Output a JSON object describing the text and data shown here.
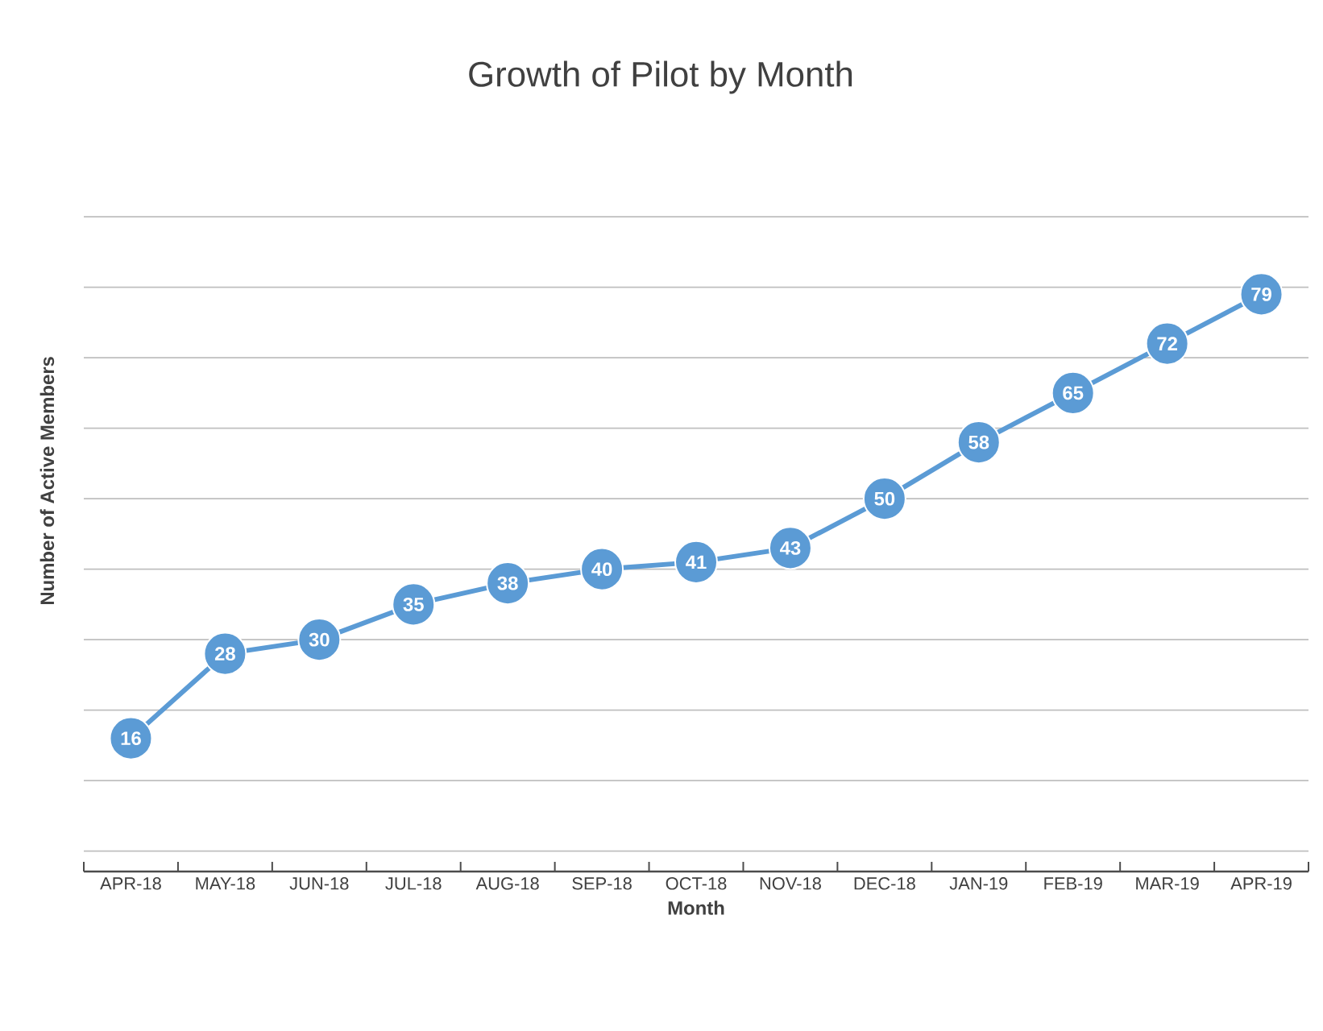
{
  "chart_data": {
    "type": "line",
    "title": "Growth of Pilot by Month",
    "xlabel": "Month",
    "ylabel": "Number of Active Members",
    "categories": [
      "APR-18",
      "MAY-18",
      "JUN-18",
      "JUL-18",
      "AUG-18",
      "SEP-18",
      "OCT-18",
      "NOV-18",
      "DEC-18",
      "JAN-19",
      "FEB-19",
      "MAR-19",
      "APR-19"
    ],
    "values": [
      16,
      28,
      30,
      35,
      38,
      40,
      41,
      43,
      50,
      58,
      65,
      72,
      79
    ],
    "color": "#5b9bd5",
    "marker": "circle",
    "data_labels": true,
    "grid": "y",
    "tick_labels": "x"
  }
}
